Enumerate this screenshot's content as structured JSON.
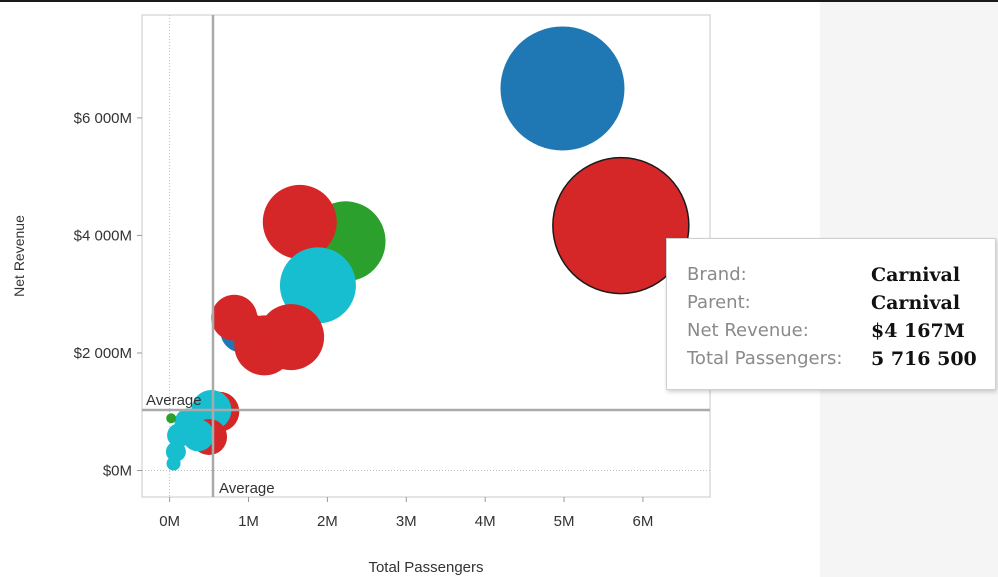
{
  "chart_data": {
    "type": "scatter",
    "xlabel": "Total Passengers",
    "ylabel": "Net Revenue",
    "xlim": [
      -0.35,
      6.85
    ],
    "ylim": [
      -450,
      7750
    ],
    "x_ticks": [
      {
        "value": 0,
        "label": "0M"
      },
      {
        "value": 1,
        "label": "1M"
      },
      {
        "value": 2,
        "label": "2M"
      },
      {
        "value": 3,
        "label": "3M"
      },
      {
        "value": 4,
        "label": "4M"
      },
      {
        "value": 5,
        "label": "5M"
      },
      {
        "value": 6,
        "label": "6M"
      }
    ],
    "y_ticks": [
      {
        "value": 0,
        "label": "$0M"
      },
      {
        "value": 2000,
        "label": "$2 000M"
      },
      {
        "value": 4000,
        "label": "$4 000M"
      },
      {
        "value": 6000,
        "label": "$6 000M"
      }
    ],
    "x_unit": "M passengers",
    "y_unit": "$M",
    "reference_lines": [
      {
        "axis": "x",
        "value": 0.55,
        "label": "Average"
      },
      {
        "axis": "y",
        "value": 1030,
        "label": "Average"
      }
    ],
    "zero_lines": true,
    "colors": {
      "blue": "#1f77b4",
      "red": "#d62728",
      "green": "#2ca02c",
      "cyan": "#17becf"
    },
    "points": [
      {
        "x": 4.98,
        "y": 6500,
        "size": 62,
        "color": "blue"
      },
      {
        "x": 5.72,
        "y": 4167,
        "size": 68,
        "color": "red",
        "highlighted": true
      },
      {
        "x": 2.23,
        "y": 3900,
        "size": 40,
        "color": "green"
      },
      {
        "x": 1.65,
        "y": 4230,
        "size": 37,
        "color": "red"
      },
      {
        "x": 1.88,
        "y": 3150,
        "size": 38,
        "color": "cyan"
      },
      {
        "x": 0.92,
        "y": 2380,
        "size": 22,
        "color": "blue"
      },
      {
        "x": 0.82,
        "y": 2600,
        "size": 23,
        "color": "red"
      },
      {
        "x": 1.2,
        "y": 2130,
        "size": 30,
        "color": "red"
      },
      {
        "x": 1.54,
        "y": 2270,
        "size": 33,
        "color": "red"
      },
      {
        "x": 0.48,
        "y": 890,
        "size": 10,
        "color": "green"
      },
      {
        "x": 0.63,
        "y": 1000,
        "size": 20,
        "color": "red"
      },
      {
        "x": 0.53,
        "y": 1030,
        "size": 20,
        "color": "cyan"
      },
      {
        "x": 0.5,
        "y": 570,
        "size": 18,
        "color": "red"
      },
      {
        "x": 0.36,
        "y": 600,
        "size": 16,
        "color": "cyan"
      },
      {
        "x": 0.24,
        "y": 820,
        "size": 14,
        "color": "cyan"
      },
      {
        "x": 0.12,
        "y": 600,
        "size": 12,
        "color": "cyan"
      },
      {
        "x": 0.08,
        "y": 320,
        "size": 10,
        "color": "cyan"
      },
      {
        "x": 0.05,
        "y": 120,
        "size": 7,
        "color": "cyan"
      },
      {
        "x": 0.02,
        "y": 890,
        "size": 5,
        "color": "green"
      }
    ]
  },
  "tooltip": {
    "rows": [
      {
        "label": "Brand:",
        "value": "Carnival"
      },
      {
        "label": "Parent:",
        "value": "Carnival"
      },
      {
        "label": "Net Revenue:",
        "value": "$4 167M"
      },
      {
        "label": "Total Passengers:",
        "value": "5 716 500"
      }
    ]
  }
}
